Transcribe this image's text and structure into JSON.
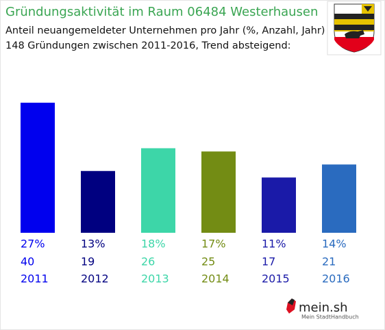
{
  "chart_data": {
    "type": "bar",
    "title": "Gründungsaktivität im Raum 06484 Westerhausen",
    "subtitle": [
      "Anteil neuangemeldeter Unternehmen pro Jahr (%, Anzahl, Jahr)",
      "148 Gründungen zwischen 2011-2016, Trend absteigend:"
    ],
    "categories": [
      "2011",
      "2012",
      "2013",
      "2014",
      "2015",
      "2016"
    ],
    "values": [
      40,
      19,
      26,
      25,
      17,
      21
    ],
    "shares": {
      "values": [
        27,
        13,
        18,
        17,
        11,
        14
      ],
      "value_labels": [
        "27%",
        "13%",
        "18%",
        "17%",
        "11%",
        "14%"
      ]
    },
    "colors": [
      "#0000ee",
      "#000080",
      "#3dd6a8",
      "#738c14",
      "#1a1aa8",
      "#2a6bbf"
    ]
  },
  "footer": {
    "brand": "mein.sh",
    "tagline": "Mein StadtHandbuch"
  }
}
